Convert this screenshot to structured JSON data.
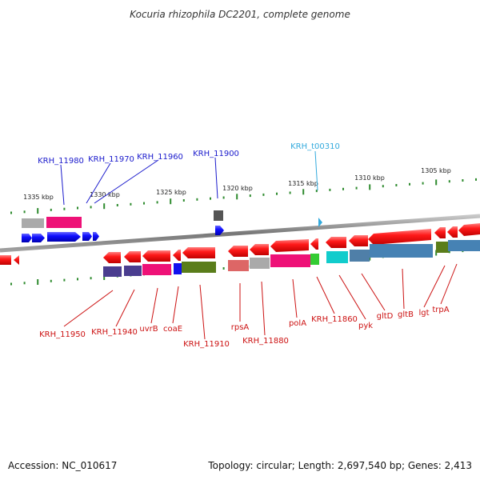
{
  "title": "Kocuria rhizophila DC2201, complete genome",
  "footer": {
    "accession": "Accession: NC_010617",
    "summary": "Topology: circular; Length: 2,697,540 bp; Genes: 2,413"
  },
  "colors": {
    "backbone": "#888888",
    "tick": "#2e8b2e",
    "forward_label": "#1a1acc",
    "reverse_label": "#cc1111",
    "trna_label": "#33aadd"
  },
  "scale_ticks": [
    "1335 kbp",
    "1330 kbp",
    "1325 kbp",
    "1320 kbp",
    "1315 kbp",
    "1310 kbp",
    "1305 kbp"
  ],
  "forward_labels": [
    "KRH_11980",
    "KRH_11970",
    "KRH_11960",
    "KRH_11900"
  ],
  "trna_label": "KRH_t00310",
  "reverse_labels": [
    "KRH_11950",
    "KRH_11940",
    "uvrB",
    "coaE",
    "KRH_11910",
    "rpsA",
    "KRH_11880",
    "polA",
    "KRH_11860",
    "pyk",
    "gltD",
    "gltB",
    "lgt",
    "trpA"
  ]
}
